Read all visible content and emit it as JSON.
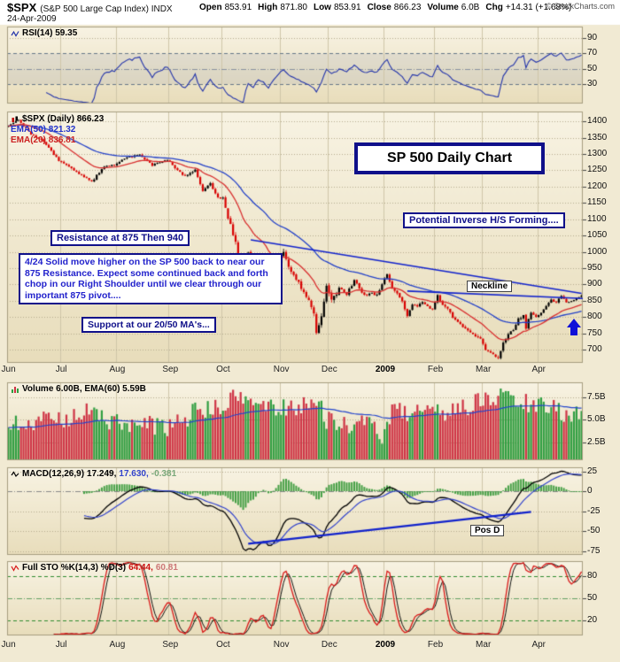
{
  "header": {
    "symbol": "$SPX",
    "symbol_desc": "(S&P 500 Large Cap Index) INDX",
    "date": "24-Apr-2009",
    "quote": [
      {
        "label": "Open",
        "value": "853.91"
      },
      {
        "label": "High",
        "value": "871.80"
      },
      {
        "label": "Low",
        "value": "853.91"
      },
      {
        "label": "Close",
        "value": "866.23"
      },
      {
        "label": "Volume",
        "value": "6.0B"
      },
      {
        "label": "Chg",
        "value": "+14.31 (+1.68%)"
      }
    ],
    "copyright": "© StockCharts.com"
  },
  "panels": {
    "rsi": {
      "label": "RSI(14) 59.35"
    },
    "price": {
      "label_main": "$SPX (Daily) 866.23",
      "label_ema50": "EMA(50) 821.32",
      "label_ema20": "EMA(20) 836.81"
    },
    "volume": {
      "label": "Volume 6.00B, EMA(60) 5.59B"
    },
    "macd": {
      "name": "MACD(12,26,9)",
      "v1": "17.249,",
      "v2": "17.630,",
      "v3": "-0.381"
    },
    "sto": {
      "name": "Full STO %K(14,3) %D(3)",
      "v1": "64.44,",
      "v2": "60.81"
    }
  },
  "annotations": {
    "title_box": "SP 500 Daily Chart",
    "inverse_hs": "Potential Inverse H/S Forming....",
    "resistance": "Resistance at 875 Then 940",
    "commentary": "4/24  Solid move higher on the SP 500 back to near our 875 Resistance.  Expect some continued back and forth chop in our Right Shoulder until we clear through our important 875 pivot....",
    "support": "Support at our 20/50 MA's...",
    "neckline": "Neckline",
    "pos_d": "Pos D"
  },
  "axis": {
    "months": [
      {
        "label": "Jun",
        "i": 0
      },
      {
        "label": "Jul",
        "i": 21
      },
      {
        "label": "Aug",
        "i": 43
      },
      {
        "label": "Sep",
        "i": 64
      },
      {
        "label": "Oct",
        "i": 85
      },
      {
        "label": "Nov",
        "i": 108
      },
      {
        "label": "Dec",
        "i": 127
      },
      {
        "label": "2009",
        "i": 149,
        "bold": true
      },
      {
        "label": "Feb",
        "i": 169
      },
      {
        "label": "Mar",
        "i": 188
      },
      {
        "label": "Apr",
        "i": 210
      }
    ],
    "rsi_ticks": [
      90,
      70,
      50,
      30
    ],
    "price_ticks": [
      1400,
      1350,
      1300,
      1250,
      1200,
      1150,
      1100,
      1050,
      1000,
      950,
      900,
      850,
      800,
      750,
      700
    ],
    "volume_ticks": [
      {
        "v": 7.5,
        "label": "7.5B"
      },
      {
        "v": 5.0,
        "label": "5.0B"
      },
      {
        "v": 2.5,
        "label": "2.5B"
      }
    ],
    "macd_ticks": [
      25,
      0,
      -25,
      -50,
      -75
    ],
    "sto_ticks": [
      80,
      50,
      20
    ]
  },
  "chart_data": {
    "type": "line",
    "subtype": "multi-panel-candlestick",
    "title": "SP 500 Daily Chart",
    "symbol": "$SPX",
    "period": "Daily, Jun 2008 - 24 Apr 2009",
    "n_days": 228,
    "price_ylim": [
      660,
      1430
    ],
    "volume_ylim": [
      0.5,
      9.2
    ],
    "macd_ylim": [
      -80,
      30
    ],
    "sto_ylim": [
      0,
      100
    ],
    "rsi_ylim": [
      5,
      105
    ],
    "close_anchors": [
      [
        0,
        1385
      ],
      [
        4,
        1404
      ],
      [
        9,
        1360
      ],
      [
        14,
        1340
      ],
      [
        20,
        1278
      ],
      [
        24,
        1262
      ],
      [
        28,
        1240
      ],
      [
        33,
        1215
      ],
      [
        38,
        1262
      ],
      [
        42,
        1267
      ],
      [
        47,
        1289
      ],
      [
        52,
        1296
      ],
      [
        57,
        1266
      ],
      [
        63,
        1283
      ],
      [
        66,
        1255
      ],
      [
        70,
        1232
      ],
      [
        74,
        1251
      ],
      [
        77,
        1185
      ],
      [
        80,
        1209
      ],
      [
        83,
        1166
      ],
      [
        85,
        1161
      ],
      [
        87,
        1106
      ],
      [
        89,
        1057
      ],
      [
        91,
        996
      ],
      [
        93,
        910
      ],
      [
        95,
        1003
      ],
      [
        97,
        940
      ],
      [
        99,
        985
      ],
      [
        101,
        955
      ],
      [
        103,
        877
      ],
      [
        105,
        930
      ],
      [
        107,
        969
      ],
      [
        109,
        1005
      ],
      [
        111,
        952
      ],
      [
        113,
        930
      ],
      [
        115,
        911
      ],
      [
        117,
        873
      ],
      [
        119,
        851
      ],
      [
        121,
        806
      ],
      [
        122,
        752
      ],
      [
        124,
        800
      ],
      [
        126,
        896
      ],
      [
        128,
        848
      ],
      [
        131,
        888
      ],
      [
        134,
        870
      ],
      [
        137,
        913
      ],
      [
        139,
        888
      ],
      [
        141,
        868
      ],
      [
        144,
        872
      ],
      [
        146,
        869
      ],
      [
        148,
        903
      ],
      [
        150,
        932
      ],
      [
        152,
        890
      ],
      [
        154,
        870
      ],
      [
        156,
        850
      ],
      [
        158,
        805
      ],
      [
        160,
        840
      ],
      [
        162,
        832
      ],
      [
        164,
        845
      ],
      [
        166,
        832
      ],
      [
        168,
        825
      ],
      [
        170,
        869
      ],
      [
        172,
        835
      ],
      [
        174,
        827
      ],
      [
        177,
        789
      ],
      [
        180,
        770
      ],
      [
        183,
        753
      ],
      [
        187,
        735
      ],
      [
        189,
        700
      ],
      [
        192,
        683
      ],
      [
        194,
        676
      ],
      [
        196,
        720
      ],
      [
        198,
        750
      ],
      [
        200,
        757
      ],
      [
        202,
        794
      ],
      [
        204,
        806
      ],
      [
        205,
        768
      ],
      [
        207,
        815
      ],
      [
        209,
        798
      ],
      [
        211,
        811
      ],
      [
        213,
        835
      ],
      [
        215,
        852
      ],
      [
        217,
        843
      ],
      [
        219,
        866
      ],
      [
        221,
        843
      ],
      [
        223,
        852
      ],
      [
        226,
        861
      ],
      [
        227,
        866.23
      ]
    ],
    "volume_anchors": [
      [
        0,
        4.2
      ],
      [
        10,
        4.6
      ],
      [
        20,
        5.0
      ],
      [
        28,
        5.9
      ],
      [
        36,
        5.4
      ],
      [
        42,
        4.8
      ],
      [
        50,
        4.0
      ],
      [
        57,
        4.4
      ],
      [
        63,
        4.1
      ],
      [
        70,
        5.2
      ],
      [
        77,
        6.3
      ],
      [
        83,
        6.0
      ],
      [
        87,
        7.0
      ],
      [
        93,
        7.6
      ],
      [
        97,
        7.0
      ],
      [
        103,
        6.6
      ],
      [
        107,
        6.3
      ],
      [
        113,
        6.6
      ],
      [
        120,
        7.0
      ],
      [
        124,
        6.0
      ],
      [
        126,
        5.2
      ],
      [
        131,
        4.8
      ],
      [
        137,
        4.2
      ],
      [
        142,
        4.5
      ],
      [
        148,
        3.4
      ],
      [
        152,
        5.6
      ],
      [
        158,
        5.9
      ],
      [
        164,
        5.3
      ],
      [
        168,
        5.6
      ],
      [
        174,
        6.1
      ],
      [
        180,
        6.6
      ],
      [
        187,
        6.9
      ],
      [
        192,
        7.4
      ],
      [
        196,
        7.6
      ],
      [
        200,
        7.2
      ],
      [
        205,
        6.8
      ],
      [
        209,
        6.3
      ],
      [
        213,
        6.6
      ],
      [
        217,
        6.2
      ],
      [
        221,
        5.8
      ],
      [
        225,
        5.6
      ],
      [
        227,
        6.0
      ]
    ],
    "indicators": {
      "rsi_period": 14,
      "ema_fast": 20,
      "ema_slow": 50,
      "macd": [
        12,
        26,
        9
      ],
      "sto": [
        14,
        3,
        3
      ],
      "vol_ema": 60
    },
    "last_values": {
      "close": 866.23,
      "ema50": 821.32,
      "ema20": 836.81,
      "rsi": 59.35,
      "volume_b": 6.0,
      "vol_ema_b": 5.59,
      "macd": 17.249,
      "macd_signal": 17.63,
      "macd_hist": -0.381,
      "sto_k": 64.44,
      "sto_d": 60.81
    },
    "trend_color": "#1122cc",
    "trendlines": [
      {
        "panel": "price",
        "name": "downtrend-resistance",
        "from": [
          96,
          1037
        ],
        "to": [
          227,
          873
        ],
        "width": 1.6
      },
      {
        "panel": "price",
        "name": "neckline",
        "from": [
          158,
          880
        ],
        "to": [
          228,
          857
        ],
        "width": 1.6
      },
      {
        "panel": "macd",
        "name": "positive-divergence",
        "from": [
          95,
          -66
        ],
        "to": [
          207,
          -26
        ],
        "width": 2.2
      }
    ],
    "arrow_up": {
      "i": 224,
      "price": 795
    }
  }
}
